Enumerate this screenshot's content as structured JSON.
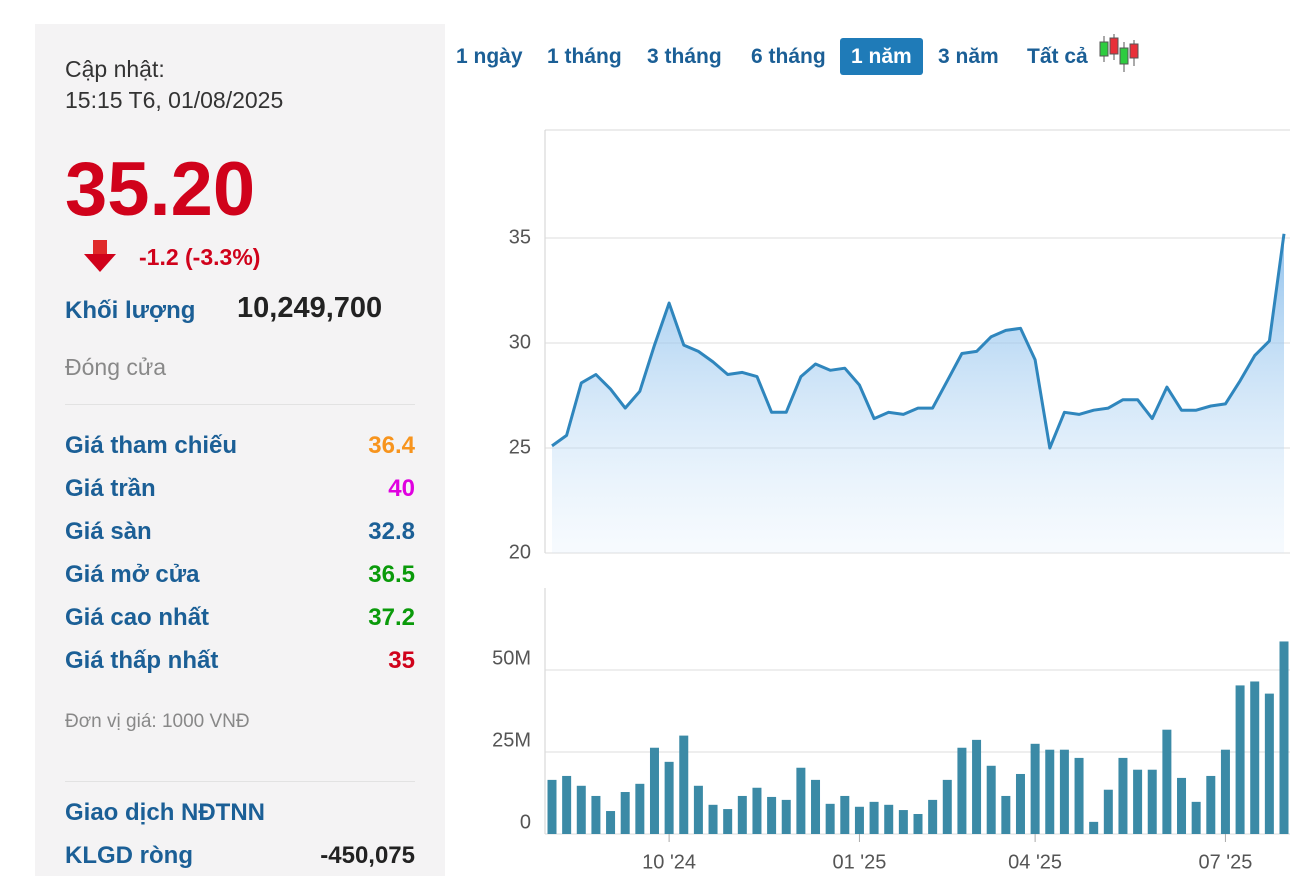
{
  "panel": {
    "update_label": "Cập nhật:",
    "update_time": "15:15 T6, 01/08/2025",
    "price": "35.20",
    "change": "-1.2 (-3.3%)",
    "volume_label": "Khối lượng",
    "volume": "10,249,700",
    "status": "Đóng cửa",
    "stats": [
      {
        "label": "Giá tham chiếu",
        "value": "36.4",
        "color": "#f7941d"
      },
      {
        "label": "Giá trần",
        "value": "40",
        "color": "#e000e0"
      },
      {
        "label": "Giá sàn",
        "value": "32.8",
        "color": "#1b5f96"
      },
      {
        "label": "Giá mở cửa",
        "value": "36.5",
        "color": "#0a9a0a"
      },
      {
        "label": "Giá cao nhất",
        "value": "37.2",
        "color": "#0a9a0a"
      },
      {
        "label": "Giá thấp nhất",
        "value": "35",
        "color": "#d0021b"
      }
    ],
    "unit_note": "Đơn vị giá: 1000 VNĐ",
    "foreign_title": "Giao dịch NĐTNN",
    "net_label": "KLGD ròng",
    "net_value": "-450,075"
  },
  "range_tabs": [
    "1 ngày",
    "1 tháng",
    "3 tháng",
    "6 tháng",
    "1 năm",
    "3 năm",
    "Tất cả"
  ],
  "active_tab": 4,
  "chart_data": [
    {
      "type": "area",
      "color": "#2f86bd",
      "values": [
        25.1,
        25.6,
        28.1,
        28.5,
        27.8,
        26.9,
        27.7,
        29.9,
        31.9,
        29.9,
        29.6,
        29.1,
        28.5,
        28.6,
        28.4,
        26.7,
        26.7,
        28.4,
        29.0,
        28.7,
        28.8,
        28.0,
        26.4,
        26.7,
        26.6,
        26.9,
        26.9,
        28.2,
        29.5,
        29.6,
        30.3,
        30.6,
        30.7,
        29.2,
        25.0,
        26.7,
        26.6,
        26.8,
        26.9,
        27.3,
        27.3,
        26.4,
        27.9,
        26.8,
        26.8,
        27.0,
        27.1,
        28.2,
        29.4,
        30.1,
        35.2
      ],
      "ylim": [
        20,
        40
      ],
      "yticks": [
        20,
        25,
        30,
        35
      ],
      "grid": true
    },
    {
      "type": "bar",
      "color": "#3b8aa6",
      "categories": [
        null,
        null,
        null,
        null,
        null,
        null,
        null,
        null,
        "10 '24",
        null,
        null,
        null,
        null,
        null,
        null,
        null,
        null,
        null,
        null,
        null,
        null,
        "01 '25",
        null,
        null,
        null,
        null,
        null,
        null,
        null,
        null,
        null,
        null,
        null,
        "04 '25",
        null,
        null,
        null,
        null,
        null,
        null,
        null,
        null,
        null,
        null,
        null,
        null,
        "07 '25",
        null,
        null,
        null,
        null
      ],
      "values": [
        16500000,
        17700000,
        14700000,
        11600000,
        7000000,
        12800000,
        15300000,
        26300000,
        22000000,
        30000000,
        14700000,
        8900000,
        7600000,
        11600000,
        14100000,
        11300000,
        10400000,
        20200000,
        16500000,
        9200000,
        11600000,
        8300000,
        9800000,
        8900000,
        7300000,
        6100000,
        10400000,
        16500000,
        26300000,
        28700000,
        20800000,
        11600000,
        18300000,
        27500000,
        25700000,
        25700000,
        23200000,
        3700000,
        13500000,
        23200000,
        19600000,
        19600000,
        31800000,
        17100000,
        9800000,
        17700000,
        25700000,
        45300000,
        46500000,
        42800000,
        58700000
      ],
      "ylim": [
        0,
        75000000
      ],
      "yticks": [
        0,
        {
          "value": 25000000,
          "label": "25M"
        },
        {
          "value": 50000000,
          "label": "50M"
        }
      ],
      "grid": true
    }
  ]
}
